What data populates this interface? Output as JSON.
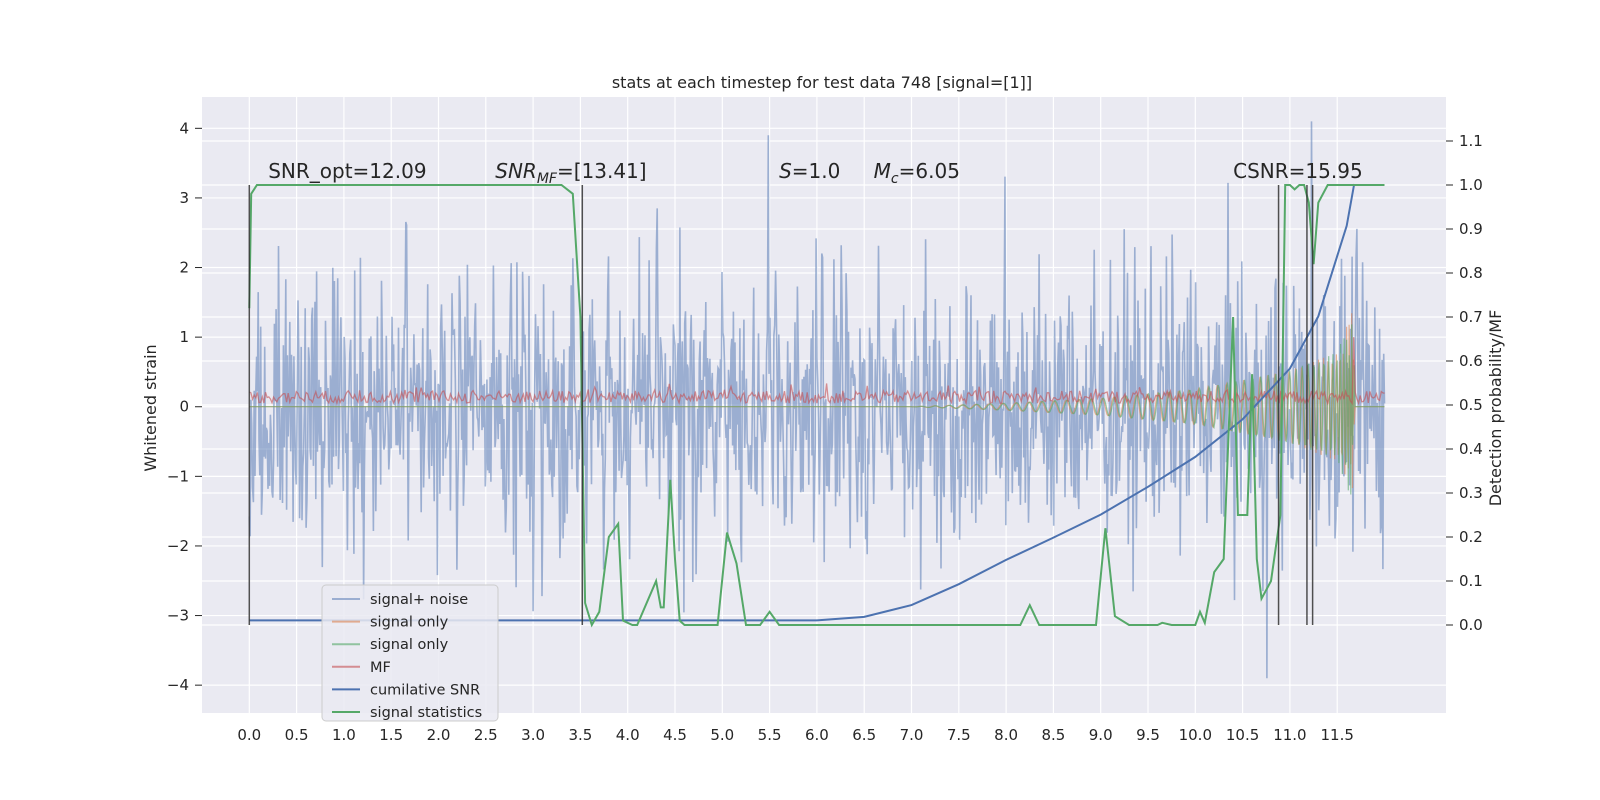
{
  "chart_data": {
    "type": "line",
    "title": "stats at each timestep for test data 748 [signal=[1]]",
    "xlabel": "",
    "ylabel": "Whitened strain",
    "y2label": "Detection probability/MF",
    "xlim": [
      -0.5,
      12.65
    ],
    "ylim": [
      -4.4,
      4.45
    ],
    "y2lim": [
      -0.2,
      1.2
    ],
    "grid": true,
    "legend_position": "lower-left",
    "x_ticks": [
      "0.0",
      "0.5",
      "1.0",
      "1.5",
      "2.0",
      "2.5",
      "3.0",
      "3.5",
      "4.0",
      "4.5",
      "5.0",
      "5.5",
      "6.0",
      "6.5",
      "7.0",
      "7.5",
      "8.0",
      "8.5",
      "9.0",
      "9.5",
      "10.0",
      "10.5",
      "11.0",
      "11.5"
    ],
    "y_ticks": [
      "4",
      "3",
      "2",
      "1",
      "0",
      "−1",
      "−2",
      "−3",
      "−4"
    ],
    "y2_ticks": [
      "1.1",
      "1.0",
      "0.9",
      "0.8",
      "0.7",
      "0.6",
      "0.5",
      "0.4",
      "0.3",
      "0.2",
      "0.1",
      "0.0"
    ],
    "annotations": [
      {
        "parts": [
          {
            "text": "SNR_opt=12.09",
            "italic": false
          }
        ],
        "x": 0.2,
        "y": 3.2
      },
      {
        "parts": [
          {
            "text": "SNR",
            "italic": true
          },
          {
            "text": "MF",
            "italic": true,
            "sub": true
          },
          {
            "text": "=[13.41]",
            "italic": false
          }
        ],
        "x": 2.6,
        "y": 3.2
      },
      {
        "parts": [
          {
            "text": "S",
            "italic": true
          },
          {
            "text": "=1.0",
            "italic": false
          }
        ],
        "x": 5.6,
        "y": 3.2
      },
      {
        "parts": [
          {
            "text": "M",
            "italic": true
          },
          {
            "text": "c",
            "italic": true,
            "sub": true
          },
          {
            "text": "=6.05",
            "italic": false
          }
        ],
        "x": 6.6,
        "y": 3.2
      },
      {
        "parts": [
          {
            "text": "CSNR=15.95",
            "italic": false
          }
        ],
        "x": 10.4,
        "y": 3.2
      }
    ],
    "series": [
      {
        "name": "signal+ noise",
        "color": "#4c72b0",
        "alpha": 0.5,
        "axis": "left",
        "kind": "noise",
        "x_range": [
          0,
          12
        ],
        "envelope": [
          -3.0,
          3.0
        ],
        "extreme_peaks": [
          3.9,
          4.1,
          -3.9
        ]
      },
      {
        "name": "signal only",
        "color": "#dd8452",
        "alpha": 0.6,
        "axis": "left",
        "kind": "chirp",
        "x": [
          0,
          7.0,
          8.0,
          9.0,
          10.0,
          10.5,
          11.0,
          11.5,
          11.68
        ],
        "amplitude": [
          0.0,
          0.0,
          0.05,
          0.12,
          0.25,
          0.38,
          0.52,
          0.78,
          1.45
        ]
      },
      {
        "name": "signal only",
        "color": "#55a868",
        "alpha": 0.6,
        "axis": "left",
        "kind": "chirp",
        "x": [
          0,
          7.0,
          8.0,
          9.0,
          10.0,
          10.5,
          11.0,
          11.5,
          11.68
        ],
        "amplitude": [
          0.0,
          0.0,
          0.05,
          0.12,
          0.25,
          0.38,
          0.52,
          0.78,
          1.45
        ]
      },
      {
        "name": "MF",
        "color": "#c44e52",
        "alpha": 0.6,
        "axis": "left",
        "kind": "mf",
        "x_range": [
          0,
          12
        ],
        "baseline": 0.05,
        "height": 0.18,
        "spike": {
          "x": 11.67,
          "y": 1.0
        }
      },
      {
        "name": "cumilative SNR",
        "color": "#4c72b0",
        "alpha": 1.0,
        "axis": "left",
        "x": [
          0,
          6.0,
          6.5,
          7.0,
          7.5,
          8.0,
          8.5,
          9.0,
          9.5,
          10.0,
          10.5,
          11.0,
          11.3,
          11.6,
          11.68
        ],
        "y": [
          -3.07,
          -3.07,
          -3.02,
          -2.85,
          -2.55,
          -2.2,
          -1.88,
          -1.55,
          -1.15,
          -0.72,
          -0.18,
          0.55,
          1.3,
          2.6,
          3.2
        ]
      },
      {
        "name": "signal statistics",
        "color": "#55a868",
        "alpha": 1.0,
        "axis": "right",
        "x": [
          0,
          0.02,
          0.08,
          3.3,
          3.42,
          3.5,
          3.55,
          3.62,
          3.7,
          3.8,
          3.9,
          3.95,
          4.05,
          4.1,
          4.3,
          4.35,
          4.38,
          4.45,
          4.5,
          4.55,
          4.6,
          4.7,
          4.8,
          4.95,
          5.05,
          5.15,
          5.25,
          5.4,
          5.5,
          5.6,
          5.7,
          5.9,
          6.1,
          8.15,
          8.25,
          8.35,
          8.95,
          9.05,
          9.15,
          9.3,
          9.6,
          9.65,
          9.75,
          10.0,
          10.05,
          10.1,
          10.2,
          10.3,
          10.4,
          10.45,
          10.55,
          10.6,
          10.65,
          10.7,
          10.75,
          10.8,
          10.9,
          10.95,
          11.0,
          11.05,
          11.1,
          11.15,
          11.2,
          11.25,
          11.3,
          11.4,
          11.6,
          11.7,
          12.0
        ],
        "y": [
          0.72,
          0.98,
          1.0,
          1.0,
          0.98,
          0.7,
          0.05,
          0.0,
          0.03,
          0.2,
          0.23,
          0.01,
          0.0,
          0.0,
          0.1,
          0.04,
          0.04,
          0.33,
          0.15,
          0.01,
          0.0,
          0.0,
          0.0,
          0.0,
          0.21,
          0.14,
          0.0,
          0.0,
          0.03,
          0.0,
          0.0,
          0.0,
          0.0,
          0.0,
          0.045,
          0.0,
          0.0,
          0.22,
          0.02,
          0.0,
          0.0,
          0.005,
          0.0,
          0.0,
          0.03,
          0.005,
          0.12,
          0.15,
          0.7,
          0.25,
          0.25,
          0.57,
          0.15,
          0.06,
          0.08,
          0.1,
          0.25,
          1.0,
          1.0,
          0.99,
          1.0,
          1.0,
          0.96,
          0.82,
          0.96,
          1.0,
          1.0,
          1.0,
          1.0
        ]
      }
    ],
    "vertical_lines": [
      0.0,
      3.52,
      10.88,
      11.18,
      11.24
    ]
  }
}
